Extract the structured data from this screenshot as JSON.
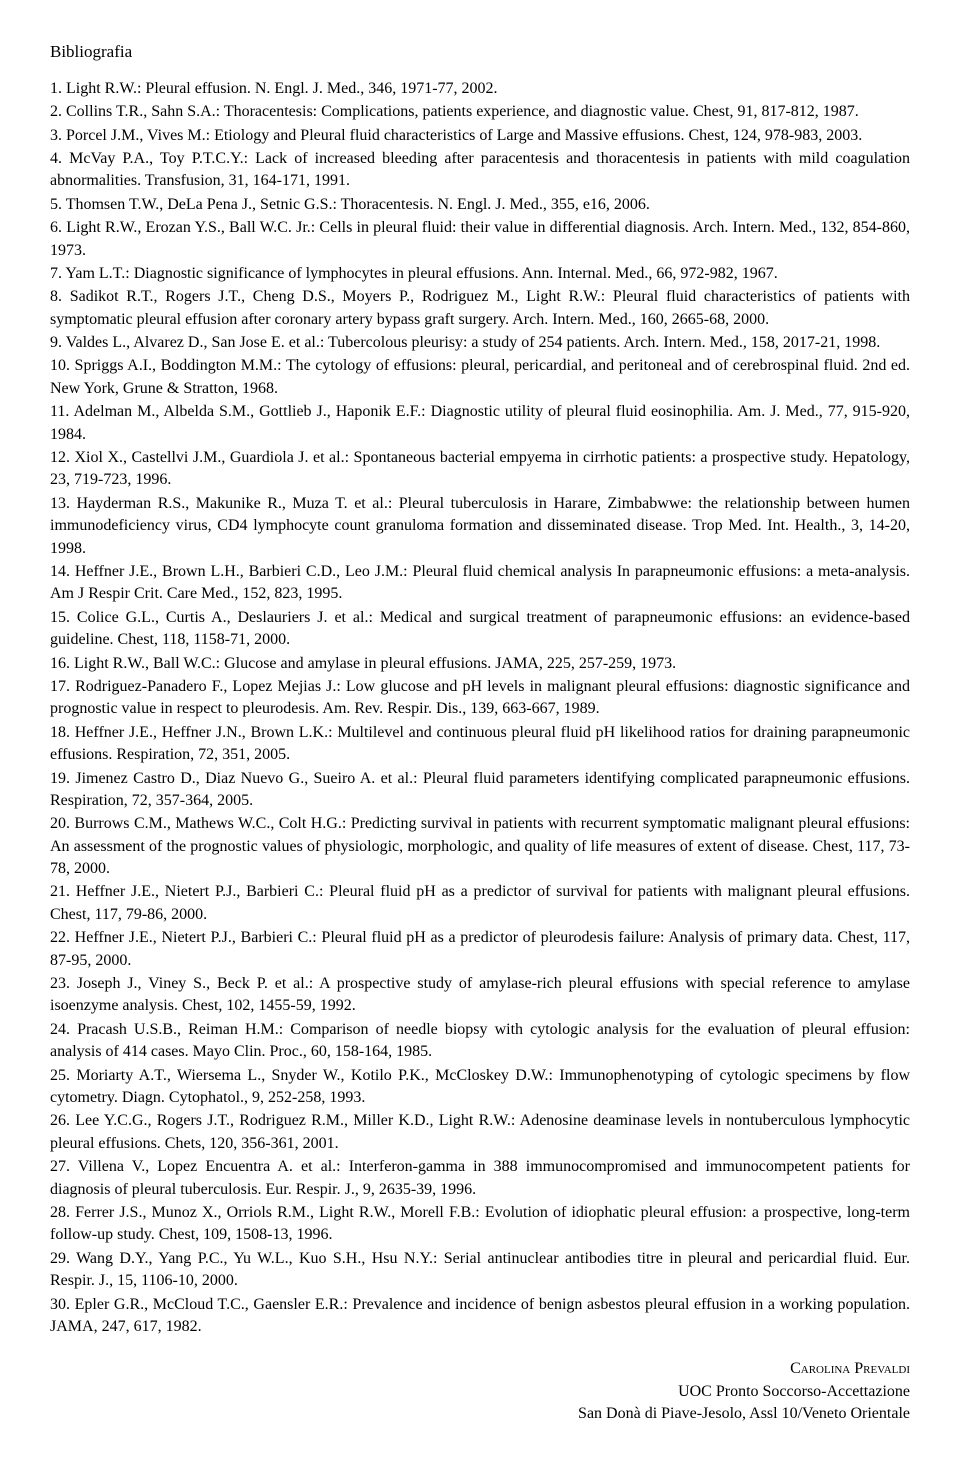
{
  "heading": "Bibliografia",
  "references": [
    "1. Light R.W.: Pleural effusion. N. Engl. J. Med., 346, 1971-77, 2002.",
    "2. Collins T.R., Sahn S.A.: Thoracentesis: Complications, patients experience, and diagnostic value. Chest, 91, 817-812, 1987.",
    "3. Porcel J.M., Vives M.: Etiology and Pleural fluid characteristics of Large and Massive effusions. Chest, 124, 978-983, 2003.",
    "4. McVay P.A., Toy P.T.C.Y.: Lack of increased bleeding after paracentesis and thoracentesis in patients with mild coagulation abnormalities. Transfusion, 31, 164-171, 1991.",
    "5. Thomsen T.W., DeLa Pena J., Setnic G.S.: Thoracentesis. N. Engl. J. Med., 355, e16, 2006.",
    "6. Light R.W., Erozan Y.S., Ball W.C. Jr.: Cells in pleural fluid: their value in differential diagnosis. Arch. Intern. Med., 132, 854-860, 1973.",
    "7. Yam L.T.: Diagnostic significance of lymphocytes in pleural effusions. Ann. Internal. Med., 66, 972-982, 1967.",
    "8. Sadikot R.T., Rogers J.T., Cheng D.S., Moyers P., Rodriguez M., Light R.W.: Pleural fluid characteristics of patients with symptomatic pleural effusion after coronary artery bypass graft surgery. Arch. Intern. Med., 160, 2665-68, 2000.",
    "9. Valdes L., Alvarez D., San Jose E. et al.: Tubercolous pleurisy: a study of 254 patients. Arch. Intern. Med., 158, 2017-21, 1998.",
    "10. Spriggs A.I., Boddington M.M.: The cytology of effusions: pleural, pericardial, and peritoneal and of cerebrospinal fluid. 2nd ed. New York, Grune & Stratton, 1968.",
    "11. Adelman M., Albelda S.M., Gottlieb J., Haponik E.F.: Diagnostic utility of pleural fluid eosinophilia. Am. J. Med., 77, 915-920, 1984.",
    "12. Xiol X., Castellvi J.M., Guardiola J. et al.: Spontaneous bacterial empyema in cirrhotic patients: a prospective study. Hepatology, 23, 719-723, 1996.",
    "13. Hayderman R.S., Makunike R., Muza T. et al.: Pleural tuberculosis in Harare, Zimbabwwe: the relationship between humen immunodeficiency virus, CD4 lymphocyte count granuloma formation and disseminated disease. Trop Med. Int. Health., 3, 14-20, 1998.",
    "14. Heffner J.E., Brown L.H., Barbieri C.D., Leo J.M.: Pleural fluid chemical analysis In parapneumonic effusions: a meta-analysis. Am J Respir Crit. Care Med., 152, 823, 1995.",
    "15. Colice G.L., Curtis A., Deslauriers J. et al.: Medical and surgical treatment of parapneumonic effusions: an evidence-based guideline. Chest, 118, 1158-71, 2000.",
    "16. Light R.W., Ball W.C.: Glucose and amylase in pleural effusions. JAMA, 225, 257-259, 1973.",
    "17. Rodriguez-Panadero F., Lopez Mejias J.: Low glucose and pH levels in malignant pleural effusions: diagnostic significance and prognostic value in respect to pleurodesis. Am. Rev. Respir. Dis., 139, 663-667, 1989.",
    "18. Heffner J.E., Heffner J.N., Brown L.K.: Multilevel and continuous pleural fluid pH likelihood ratios for draining parapneumonic effusions. Respiration, 72, 351, 2005.",
    "19. Jimenez Castro D., Diaz Nuevo G., Sueiro A. et al.: Pleural fluid parameters identifying complicated parapneumonic effusions. Respiration, 72, 357-364, 2005.",
    "20. Burrows C.M., Mathews W.C., Colt H.G.: Predicting survival in patients with recurrent symptomatic malignant pleural effusions: An assessment of the prognostic values of physiologic, morphologic, and quality of life measures of extent of disease. Chest, 117, 73-78, 2000.",
    "21. Heffner J.E., Nietert P.J., Barbieri C.: Pleural fluid pH as a predictor of survival for patients with malignant pleural effusions. Chest, 117, 79-86, 2000.",
    "22. Heffner J.E., Nietert P.J., Barbieri C.: Pleural fluid pH as a predictor of pleurodesis failure: Analysis of primary data. Chest, 117, 87-95, 2000.",
    "23. Joseph J., Viney S., Beck P. et al.: A prospective study of amylase-rich pleural effusions with special reference to amylase isoenzyme analysis. Chest, 102, 1455-59, 1992.",
    "24. Pracash U.S.B., Reiman H.M.: Comparison of needle biopsy with cytologic analysis for the evaluation of pleural effusion: analysis of 414 cases. Mayo Clin. Proc., 60, 158-164, 1985.",
    "25. Moriarty A.T., Wiersema L., Snyder W., Kotilo P.K., McCloskey D.W.: Immunophenotyping of cytologic specimens by flow cytometry. Diagn. Cytophatol., 9, 252-258, 1993.",
    "26. Lee Y.C.G., Rogers J.T., Rodriguez R.M., Miller K.D., Light R.W.: Adenosine deaminase levels in nontuberculous lymphocytic pleural effusions. Chets, 120, 356-361, 2001.",
    "27. Villena V., Lopez Encuentra A. et al.: Interferon-gamma in 388 immunocompromised and immunocompetent patients for diagnosis of pleural tuberculosis. Eur. Respir. J., 9, 2635-39, 1996.",
    "28. Ferrer J.S., Munoz X., Orriols R.M., Light R.W., Morell F.B.: Evolution of idiophatic pleural effusion: a prospective, long-term follow-up study. Chest, 109, 1508-13, 1996.",
    "29. Wang D.Y., Yang P.C., Yu W.L., Kuo S.H., Hsu N.Y.: Serial antinuclear antibodies titre in pleural and pericardial fluid. Eur. Respir. J., 15, 1106-10, 2000.",
    "30. Epler G.R., McCloud T.C., Gaensler E.R.: Prevalence and incidence of benign asbestos pleural effusion in a working population. JAMA, 247, 617, 1982."
  ],
  "footer": {
    "author": "Carolina Prevaldi",
    "dept": "UOC Pronto Soccorso-Accettazione",
    "hospital": "San Donà di Piave-Jesolo, Assl 10/Veneto Orientale"
  }
}
